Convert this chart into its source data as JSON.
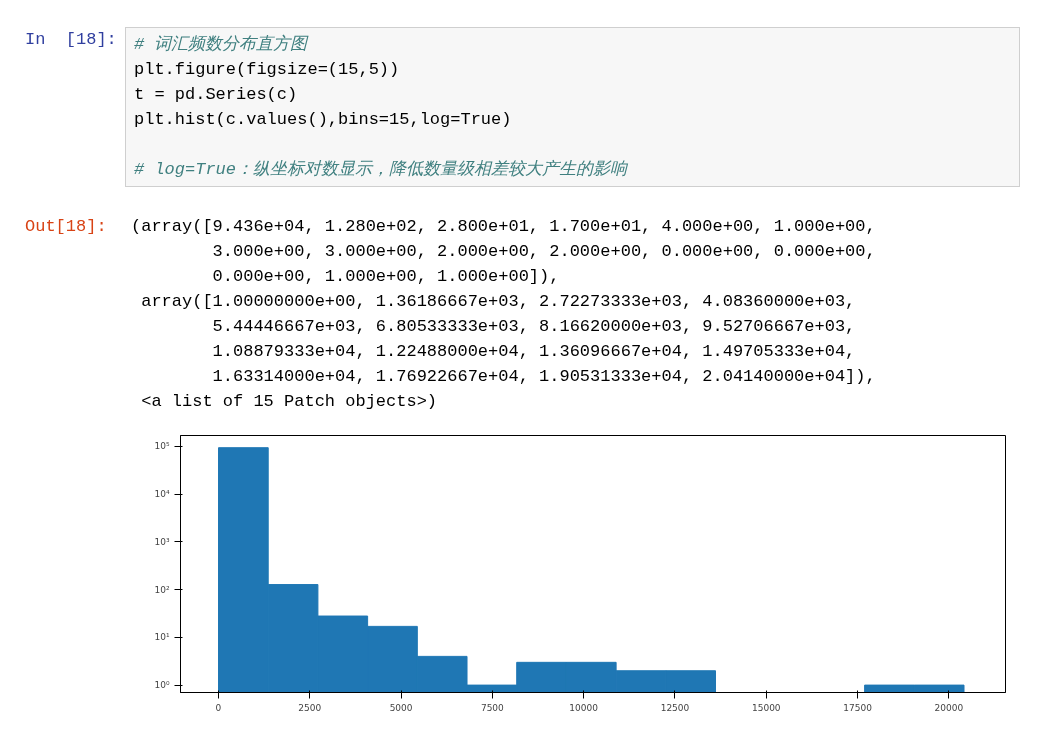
{
  "chart_data": {
    "type": "histogram",
    "annotations": [
      "In  [18]:",
      "# 词汇频数分布直方图",
      "plt.figure(figsize=(15,5))",
      "t = pd.Series(c)",
      "plt.hist(c.values(),bins=15,log=True)",
      "# log=True：纵坐标对数显示，降低数量级相差较大产生的影响",
      "Out[18]:",
      "(array([9.436e+04, 1.280e+02, 2.800e+01, 1.700e+01, 4.000e+00, 1.000e+00,",
      "        3.000e+00, 3.000e+00, 2.000e+00, 2.000e+00, 0.000e+00, 0.000e+00,",
      "        0.000e+00, 1.000e+00, 1.000e+00]),",
      " array([1.00000000e+00, 1.36186667e+03, 2.72273333e+03, 4.08360000e+03,",
      "        5.44446667e+03, 6.80533333e+03, 8.16620000e+03, 9.52706667e+03,",
      "        1.08879333e+04, 1.22488000e+04, 1.36096667e+04, 1.49705333e+04,",
      "        1.63314000e+04, 1.76922667e+04, 1.90531333e+04, 2.04140000e+04]),",
      " <a list of 15 Patch objects>)"
    ],
    "bins": [
      1,
      1361.86667,
      2722.73333,
      4083.6,
      5444.46667,
      6805.33333,
      8166.2,
      9527.06667,
      10887.9333,
      12248.8,
      13609.6667,
      14970.5333,
      16331.4,
      17692.2667,
      19053.1333,
      20414
    ],
    "values": [
      94360,
      128,
      28,
      17,
      4,
      1,
      3,
      3,
      2,
      2,
      null,
      null,
      null,
      1,
      1
    ],
    "color": "#1f77b4",
    "log": "y",
    "grid": false,
    "xlim": [
      -1040,
      21550
    ],
    "ylim": [
      0.7,
      170000
    ],
    "xticks": [
      0,
      2500,
      5000,
      7500,
      10000,
      12500,
      15000,
      17500,
      20000
    ],
    "yticks": [
      {
        "value": 1,
        "label": "10⁰"
      },
      {
        "value": 10,
        "label": "10¹"
      },
      {
        "value": 100,
        "label": "10²"
      },
      {
        "value": 1000,
        "label": "10³"
      },
      {
        "value": 10000,
        "label": "10⁴"
      },
      {
        "value": 100000,
        "label": "10⁵"
      }
    ]
  }
}
